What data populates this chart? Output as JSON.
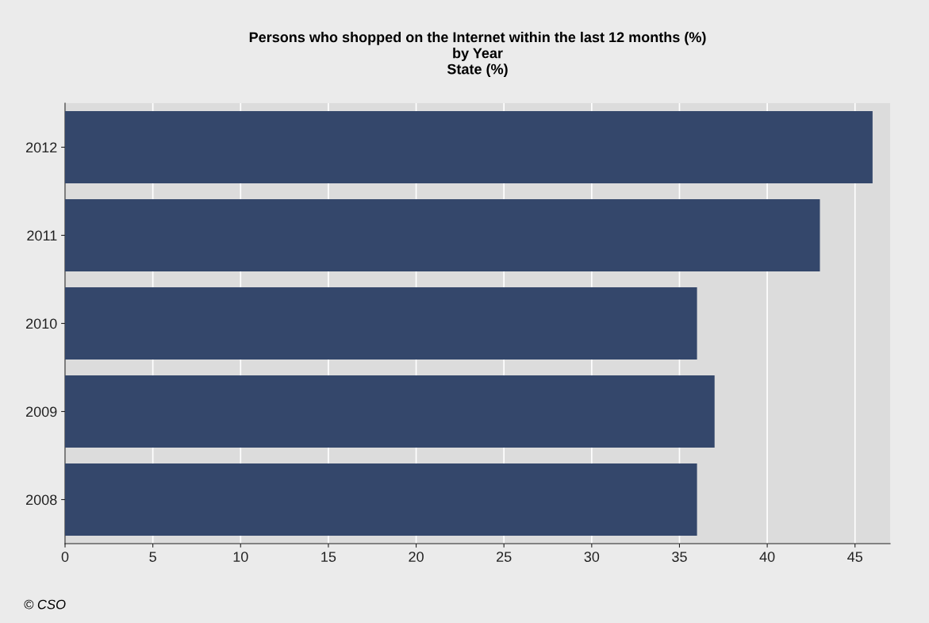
{
  "chart_data": {
    "type": "bar",
    "orientation": "horizontal",
    "title": "Persons who shopped on the Internet within the last 12 months (%)\nby Year\nState (%)",
    "categories": [
      "2012",
      "2011",
      "2010",
      "2009",
      "2008"
    ],
    "values": [
      46,
      43,
      36,
      37,
      36
    ],
    "color": "#34476b",
    "xlim": [
      0,
      47
    ],
    "xticks": [
      0,
      5,
      10,
      15,
      20,
      25,
      30,
      35,
      40,
      45
    ],
    "grid": "x",
    "annotations": [
      "© CSO"
    ]
  }
}
